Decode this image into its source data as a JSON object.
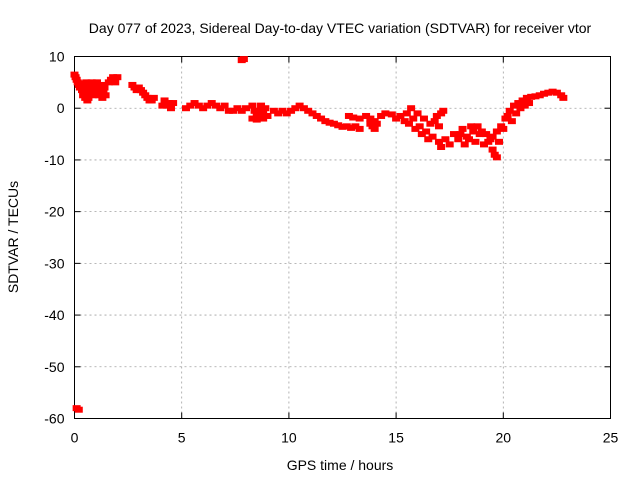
{
  "chart_data": {
    "type": "scatter",
    "title": "Day 077 of 2023, Sidereal Day-to-day VTEC variation (SDTVAR) for receiver vtor",
    "xlabel": "GPS time / hours",
    "ylabel": "SDTVAR / TECUs",
    "xlim": [
      0,
      25
    ],
    "ylim": [
      -60,
      10
    ],
    "xticks": [
      0,
      5,
      10,
      15,
      20,
      25
    ],
    "yticks": [
      10,
      0,
      -10,
      -20,
      -30,
      -40,
      -50,
      -60
    ],
    "grid": true,
    "legend": "none",
    "series": [
      {
        "name": "SDTVAR",
        "color": "#ff0000",
        "points": [
          [
            0.0,
            6.5
          ],
          [
            0.05,
            6.0
          ],
          [
            0.1,
            5.5
          ],
          [
            0.15,
            5.0
          ],
          [
            0.2,
            4.5
          ],
          [
            0.25,
            4.0
          ],
          [
            0.3,
            4.8
          ],
          [
            0.35,
            3.5
          ],
          [
            0.4,
            2.5
          ],
          [
            0.45,
            3.0
          ],
          [
            0.5,
            4.5
          ],
          [
            0.55,
            5.0
          ],
          [
            0.6,
            3.0
          ],
          [
            0.65,
            2.0
          ],
          [
            0.7,
            3.5
          ],
          [
            0.75,
            4.0
          ],
          [
            0.8,
            5.0
          ],
          [
            0.85,
            2.5
          ],
          [
            0.9,
            3.0
          ],
          [
            0.95,
            4.5
          ],
          [
            1.0,
            3.5
          ],
          [
            1.05,
            5.0
          ],
          [
            1.1,
            4.0
          ],
          [
            1.15,
            2.5
          ],
          [
            1.2,
            3.5
          ],
          [
            1.25,
            4.5
          ],
          [
            1.3,
            2.0
          ],
          [
            1.35,
            3.0
          ],
          [
            1.4,
            4.0
          ],
          [
            1.45,
            2.5
          ],
          [
            0.5,
            2.0
          ],
          [
            0.6,
            1.5
          ],
          [
            1.6,
            5.0
          ],
          [
            1.7,
            5.5
          ],
          [
            1.8,
            6.0
          ],
          [
            1.9,
            5.0
          ],
          [
            2.0,
            6.0
          ],
          [
            2.7,
            4.5
          ],
          [
            2.8,
            4.0
          ],
          [
            2.9,
            3.5
          ],
          [
            3.0,
            4.0
          ],
          [
            3.1,
            3.5
          ],
          [
            3.2,
            3.0
          ],
          [
            3.3,
            2.5
          ],
          [
            3.4,
            2.0
          ],
          [
            3.5,
            1.5
          ],
          [
            3.6,
            1.5
          ],
          [
            3.7,
            2.0
          ],
          [
            4.1,
            0.5
          ],
          [
            4.2,
            1.5
          ],
          [
            4.3,
            0.5
          ],
          [
            4.4,
            1.0
          ],
          [
            4.5,
            0.0
          ],
          [
            4.6,
            1.0
          ],
          [
            5.2,
            0.0
          ],
          [
            5.4,
            0.5
          ],
          [
            5.6,
            1.0
          ],
          [
            5.8,
            0.5
          ],
          [
            6.0,
            0.0
          ],
          [
            6.2,
            0.5
          ],
          [
            6.4,
            1.0
          ],
          [
            6.6,
            0.5
          ],
          [
            6.8,
            0.0
          ],
          [
            7.0,
            0.5
          ],
          [
            7.2,
            -0.5
          ],
          [
            7.4,
            -0.5
          ],
          [
            7.6,
            0.0
          ],
          [
            7.8,
            -0.5
          ],
          [
            8.0,
            0.0
          ],
          [
            7.9,
            9.5
          ],
          [
            7.8,
            9.3
          ],
          [
            8.3,
            0.5
          ],
          [
            8.4,
            -0.5
          ],
          [
            8.5,
            -1.5
          ],
          [
            8.6,
            -0.5
          ],
          [
            8.7,
            0.5
          ],
          [
            8.8,
            -1.0
          ],
          [
            8.9,
            0.0
          ],
          [
            9.0,
            -1.5
          ],
          [
            8.3,
            -2.0
          ],
          [
            8.5,
            -2.2
          ],
          [
            8.8,
            -2.0
          ],
          [
            9.3,
            -0.5
          ],
          [
            9.5,
            -1.0
          ],
          [
            9.7,
            -0.5
          ],
          [
            9.9,
            -1.0
          ],
          [
            10.1,
            -0.5
          ],
          [
            10.3,
            0.0
          ],
          [
            10.5,
            0.5
          ],
          [
            10.7,
            0.0
          ],
          [
            10.9,
            -0.5
          ],
          [
            11.1,
            -1.0
          ],
          [
            11.3,
            -1.5
          ],
          [
            11.5,
            -2.0
          ],
          [
            11.7,
            -2.5
          ],
          [
            11.9,
            -2.8
          ],
          [
            12.1,
            -3.0
          ],
          [
            12.3,
            -3.3
          ],
          [
            12.5,
            -3.6
          ],
          [
            12.7,
            -3.5
          ],
          [
            12.9,
            -3.8
          ],
          [
            13.1,
            -3.5
          ],
          [
            13.3,
            -4.0
          ],
          [
            12.8,
            -1.5
          ],
          [
            13.0,
            -1.8
          ],
          [
            13.3,
            -2.0
          ],
          [
            13.6,
            -1.5
          ],
          [
            13.8,
            -2.0
          ],
          [
            14.0,
            -2.5
          ],
          [
            13.8,
            -3.0
          ],
          [
            13.9,
            -3.5
          ],
          [
            14.0,
            -4.0
          ],
          [
            14.1,
            -3.0
          ],
          [
            14.3,
            -1.5
          ],
          [
            14.5,
            -1.0
          ],
          [
            14.8,
            -1.2
          ],
          [
            15.0,
            -2.0
          ],
          [
            15.2,
            -1.5
          ],
          [
            15.4,
            -2.5
          ],
          [
            15.5,
            -1.0
          ],
          [
            15.6,
            -3.0
          ],
          [
            15.7,
            0.0
          ],
          [
            15.8,
            -2.0
          ],
          [
            15.9,
            -4.0
          ],
          [
            16.0,
            -1.0
          ],
          [
            16.1,
            -3.5
          ],
          [
            16.2,
            -5.0
          ],
          [
            16.3,
            -2.0
          ],
          [
            16.4,
            -4.5
          ],
          [
            16.5,
            -6.0
          ],
          [
            16.6,
            -3.0
          ],
          [
            16.7,
            -5.5
          ],
          [
            16.8,
            -2.5
          ],
          [
            16.9,
            -1.5
          ],
          [
            17.0,
            -3.5
          ],
          [
            17.1,
            -1.0
          ],
          [
            17.2,
            -0.5
          ],
          [
            17.0,
            -6.5
          ],
          [
            17.1,
            -7.5
          ],
          [
            17.3,
            -6.0
          ],
          [
            17.5,
            -7.0
          ],
          [
            17.7,
            -5.0
          ],
          [
            17.9,
            -6.0
          ],
          [
            18.1,
            -4.0
          ],
          [
            18.3,
            -5.5
          ],
          [
            18.5,
            -3.5
          ],
          [
            18.7,
            -6.5
          ],
          [
            18.9,
            -5.0
          ],
          [
            19.1,
            -7.0
          ],
          [
            19.3,
            -6.5
          ],
          [
            19.5,
            -8.0
          ],
          [
            19.6,
            -9.0
          ],
          [
            19.7,
            -9.5
          ],
          [
            18.0,
            -5.0
          ],
          [
            18.2,
            -7.0
          ],
          [
            18.4,
            -6.0
          ],
          [
            18.6,
            -4.5
          ],
          [
            18.8,
            -3.5
          ],
          [
            19.0,
            -4.5
          ],
          [
            19.2,
            -5.0
          ],
          [
            19.4,
            -6.0
          ],
          [
            19.5,
            -5.5
          ],
          [
            19.7,
            -4.5
          ],
          [
            19.9,
            -3.5
          ],
          [
            20.1,
            -2.0
          ],
          [
            20.3,
            -0.5
          ],
          [
            20.5,
            0.5
          ],
          [
            20.7,
            1.0
          ],
          [
            20.9,
            1.5
          ],
          [
            21.1,
            2.0
          ],
          [
            21.3,
            2.2
          ],
          [
            21.5,
            2.3
          ],
          [
            21.7,
            2.5
          ],
          [
            21.9,
            2.8
          ],
          [
            22.1,
            3.0
          ],
          [
            22.3,
            3.2
          ],
          [
            22.5,
            3.0
          ],
          [
            22.7,
            2.5
          ],
          [
            22.8,
            2.0
          ],
          [
            19.8,
            -6.5
          ],
          [
            20.0,
            -4.0
          ],
          [
            20.2,
            -1.5
          ],
          [
            20.4,
            -2.5
          ],
          [
            20.6,
            -1.0
          ],
          [
            20.8,
            0.0
          ],
          [
            21.0,
            0.5
          ],
          [
            21.2,
            1.0
          ],
          [
            0.1,
            -58.0
          ],
          [
            0.2,
            -58.3
          ]
        ]
      }
    ]
  }
}
